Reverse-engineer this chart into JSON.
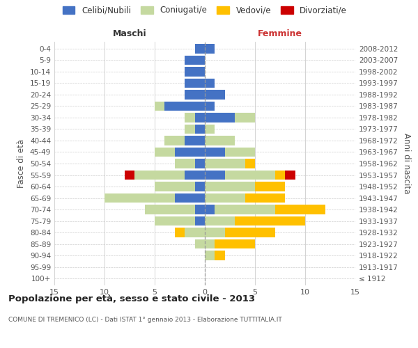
{
  "age_groups": [
    "100+",
    "95-99",
    "90-94",
    "85-89",
    "80-84",
    "75-79",
    "70-74",
    "65-69",
    "60-64",
    "55-59",
    "50-54",
    "45-49",
    "40-44",
    "35-39",
    "30-34",
    "25-29",
    "20-24",
    "15-19",
    "10-14",
    "5-9",
    "0-4"
  ],
  "birth_years": [
    "≤ 1912",
    "1913-1917",
    "1918-1922",
    "1923-1927",
    "1928-1932",
    "1933-1937",
    "1938-1942",
    "1943-1947",
    "1948-1952",
    "1953-1957",
    "1958-1962",
    "1963-1967",
    "1968-1972",
    "1973-1977",
    "1978-1982",
    "1983-1987",
    "1988-1992",
    "1993-1997",
    "1998-2002",
    "2003-2007",
    "2008-2012"
  ],
  "male": {
    "celibi": [
      0,
      0,
      0,
      0,
      0,
      1,
      1,
      3,
      1,
      2,
      1,
      3,
      2,
      1,
      1,
      4,
      2,
      2,
      2,
      2,
      1
    ],
    "coniugati": [
      0,
      0,
      0,
      1,
      2,
      4,
      5,
      7,
      4,
      5,
      2,
      2,
      2,
      1,
      1,
      1,
      0,
      0,
      0,
      0,
      0
    ],
    "vedovi": [
      0,
      0,
      0,
      0,
      1,
      0,
      0,
      0,
      0,
      0,
      0,
      0,
      0,
      0,
      0,
      0,
      0,
      0,
      0,
      0,
      0
    ],
    "divorziati": [
      0,
      0,
      0,
      0,
      0,
      0,
      0,
      0,
      0,
      1,
      0,
      0,
      0,
      0,
      0,
      0,
      0,
      0,
      0,
      0,
      0
    ]
  },
  "female": {
    "nubili": [
      0,
      0,
      0,
      0,
      0,
      0,
      1,
      0,
      0,
      2,
      0,
      2,
      0,
      0,
      3,
      1,
      2,
      1,
      0,
      0,
      1
    ],
    "coniugate": [
      0,
      0,
      1,
      1,
      2,
      3,
      6,
      4,
      5,
      5,
      4,
      3,
      3,
      1,
      2,
      0,
      0,
      0,
      0,
      0,
      0
    ],
    "vedove": [
      0,
      0,
      1,
      4,
      5,
      7,
      5,
      4,
      3,
      1,
      1,
      0,
      0,
      0,
      0,
      0,
      0,
      0,
      0,
      0,
      0
    ],
    "divorziate": [
      0,
      0,
      0,
      0,
      0,
      0,
      0,
      0,
      0,
      1,
      0,
      0,
      0,
      0,
      0,
      0,
      0,
      0,
      0,
      0,
      0
    ]
  },
  "colors": {
    "celibi_nubili": "#4472c4",
    "coniugati": "#c5d9a0",
    "vedovi": "#ffc000",
    "divorziati": "#cc0000"
  },
  "xlim": 15,
  "title": "Popolazione per età, sesso e stato civile - 2013",
  "subtitle": "COMUNE DI TREMENICO (LC) - Dati ISTAT 1° gennaio 2013 - Elaborazione TUTTITALIA.IT",
  "ylabel_left": "Fasce di età",
  "ylabel_right": "Anni di nascita",
  "xlabel_maschi": "Maschi",
  "xlabel_femmine": "Femmine",
  "legend_labels": [
    "Celibi/Nubili",
    "Coniugati/e",
    "Vedovi/e",
    "Divorziati/e"
  ],
  "background_color": "#ffffff",
  "grid_color": "#cccccc"
}
